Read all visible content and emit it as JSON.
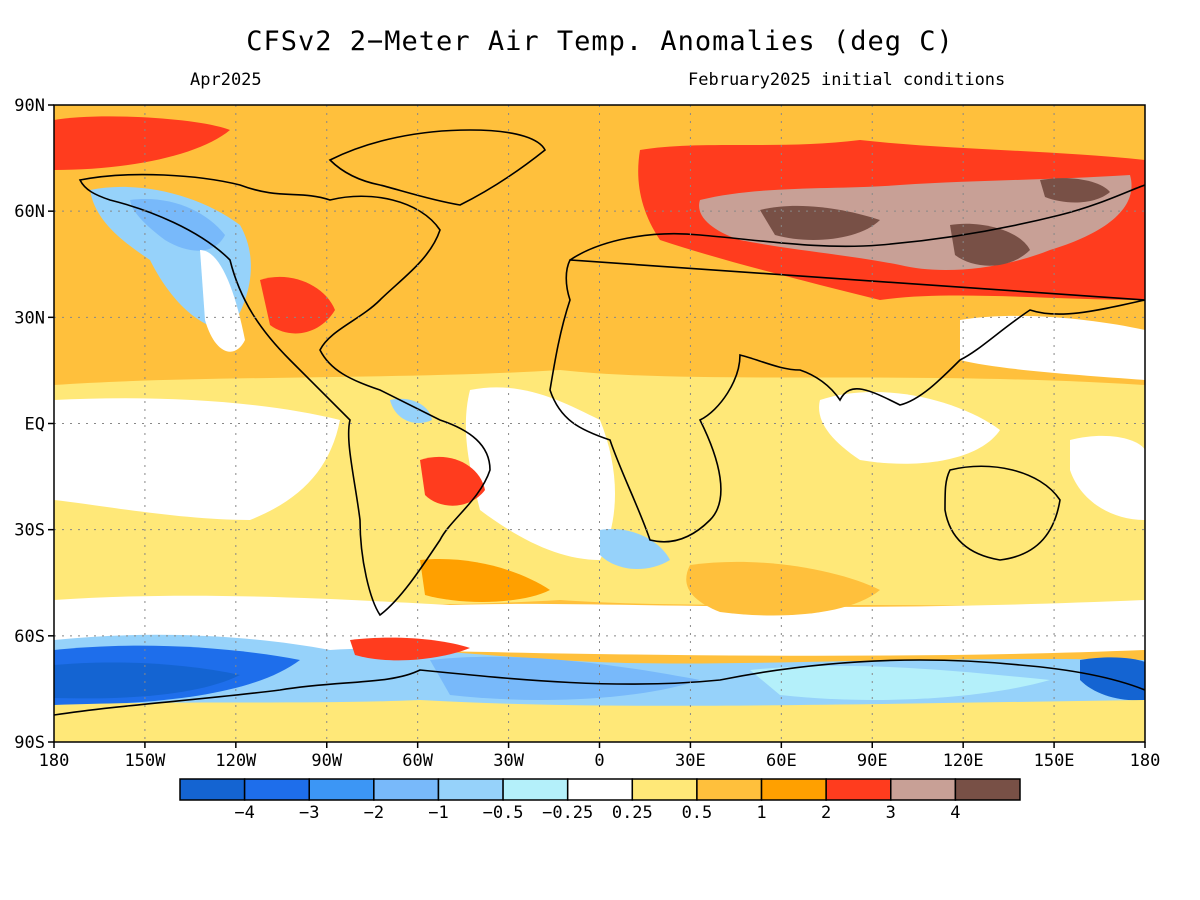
{
  "title": "CFSv2 2−Meter Air Temp. Anomalies (deg C)",
  "valid_month": "Apr2025",
  "init_conditions": "February2025 initial conditions",
  "lat_ticks": [
    "90N",
    "60N",
    "30N",
    "EQ",
    "30S",
    "60S",
    "90S"
  ],
  "lon_ticks": [
    "180",
    "150W",
    "120W",
    "90W",
    "60W",
    "30W",
    "0",
    "30E",
    "60E",
    "90E",
    "120E",
    "150E",
    "180"
  ],
  "colorbar": {
    "colors": [
      "#1464d2",
      "#1e6eeb",
      "#3c96f5",
      "#78b9fa",
      "#96d2fa",
      "#b4f0fa",
      "#ffffff",
      "#ffe878",
      "#ffc03c",
      "#ffa000",
      "#ff3c1e",
      "#c8a096",
      "#785046"
    ],
    "labels": [
      "−4",
      "−3",
      "−2",
      "−1",
      "−0.5",
      "−0.25",
      "0.25",
      "0.5",
      "1",
      "2",
      "3",
      "4"
    ]
  },
  "map_regions": [
    {
      "name": "siberia-extreme-warm",
      "value": "4"
    },
    {
      "name": "arctic-warm",
      "value": "3"
    },
    {
      "name": "southern-ocean-cold",
      "value": "-4"
    }
  ]
}
